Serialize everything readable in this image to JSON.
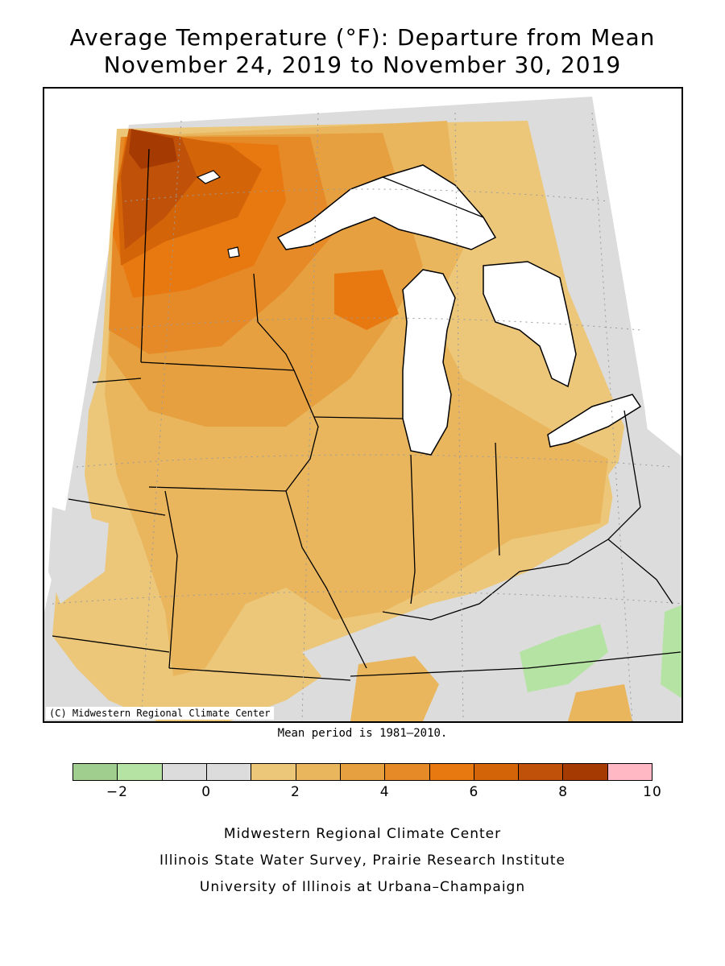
{
  "title": {
    "line1": "Average Temperature (°F): Departure from Mean",
    "line2": "November 24, 2019 to November 30, 2019"
  },
  "map": {
    "copyright": "(C) Midwestern Regional Climate Center",
    "water_color": "#ffffff",
    "border_color": "#000000"
  },
  "mean_period": "Mean period is 1981–2010.",
  "legend": {
    "colors": [
      "#9fce8f",
      "#b5e3a4",
      "#dcdcdc",
      "#dcdcdc",
      "#ecc77a",
      "#e9b65e",
      "#e6a040",
      "#e68a28",
      "#e87810",
      "#d36408",
      "#bf5208",
      "#a53a02",
      "#ffb8c4"
    ],
    "labels": [
      "−2",
      "0",
      "2",
      "4",
      "6",
      "8",
      "10"
    ]
  },
  "credits": [
    "Midwestern Regional Climate Center",
    "Illinois State Water Survey, Prairie Research Institute",
    "University of Illinois at Urbana–Champaign"
  ]
}
